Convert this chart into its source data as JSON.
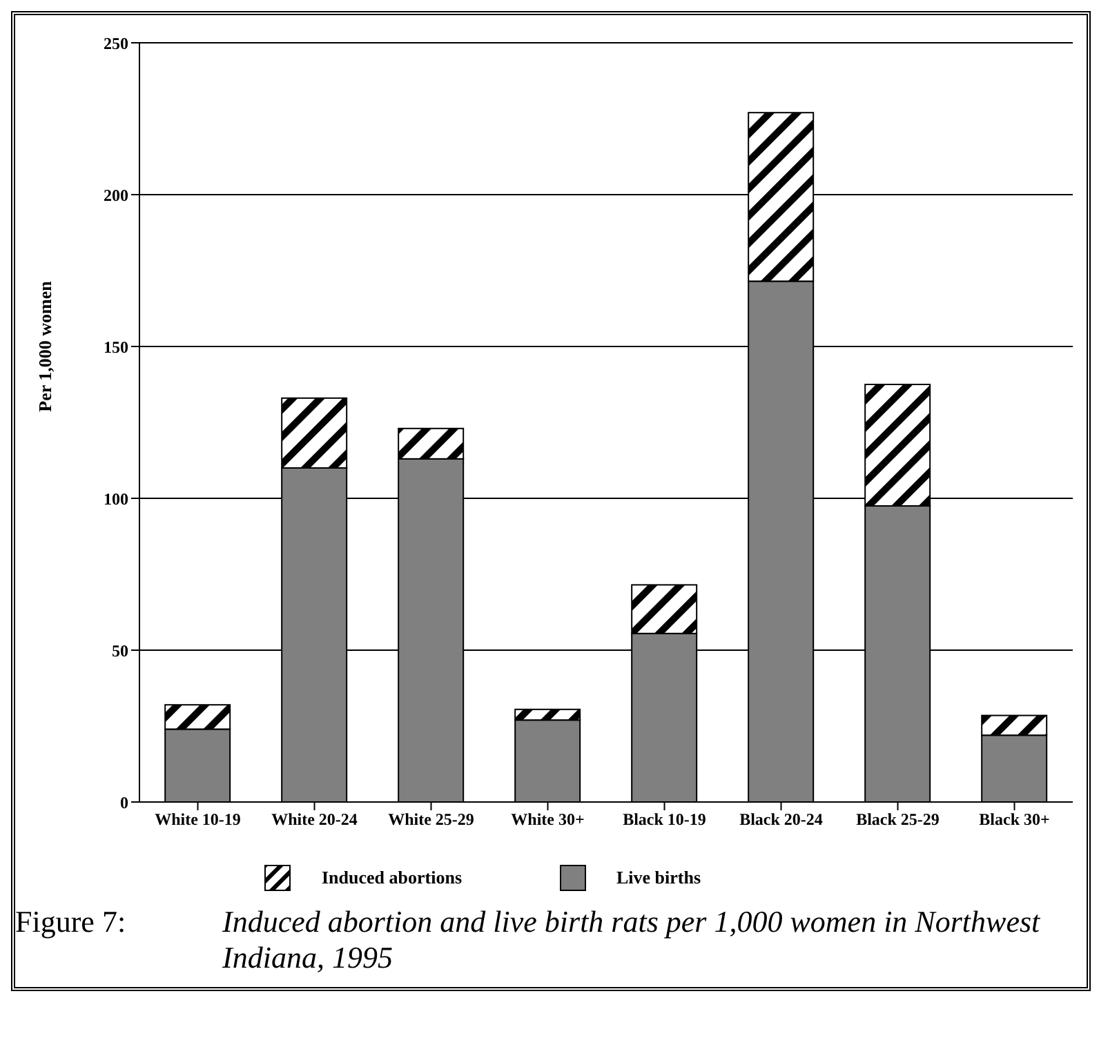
{
  "chart_data": {
    "type": "bar",
    "stacked": true,
    "title": "Induced abortion and live birth rats per 1,000 women in Northwest Indiana, 1995",
    "annotations": [
      "Figure 7:"
    ],
    "ylabel": "Per 1,000 women",
    "categories": [
      "White 10-19",
      "White 20-24",
      "White 25-29",
      "White 30+",
      "Black 10-19",
      "Black 20-24",
      "Black 25-29",
      "Black 30+"
    ],
    "series": [
      {
        "name": "Live births",
        "color": "#808080",
        "values": [
          24,
          110,
          113,
          27,
          55.5,
          171.5,
          97.5,
          22
        ]
      },
      {
        "name": "Induced abortions",
        "color": "#000000",
        "values": [
          8,
          23,
          10,
          3.5,
          16,
          55.5,
          40,
          6.5
        ]
      }
    ],
    "ylim": [
      0,
      250
    ],
    "yticks": [
      0,
      50,
      100,
      150,
      200,
      250
    ],
    "grid": "y",
    "legend": "bottom"
  }
}
